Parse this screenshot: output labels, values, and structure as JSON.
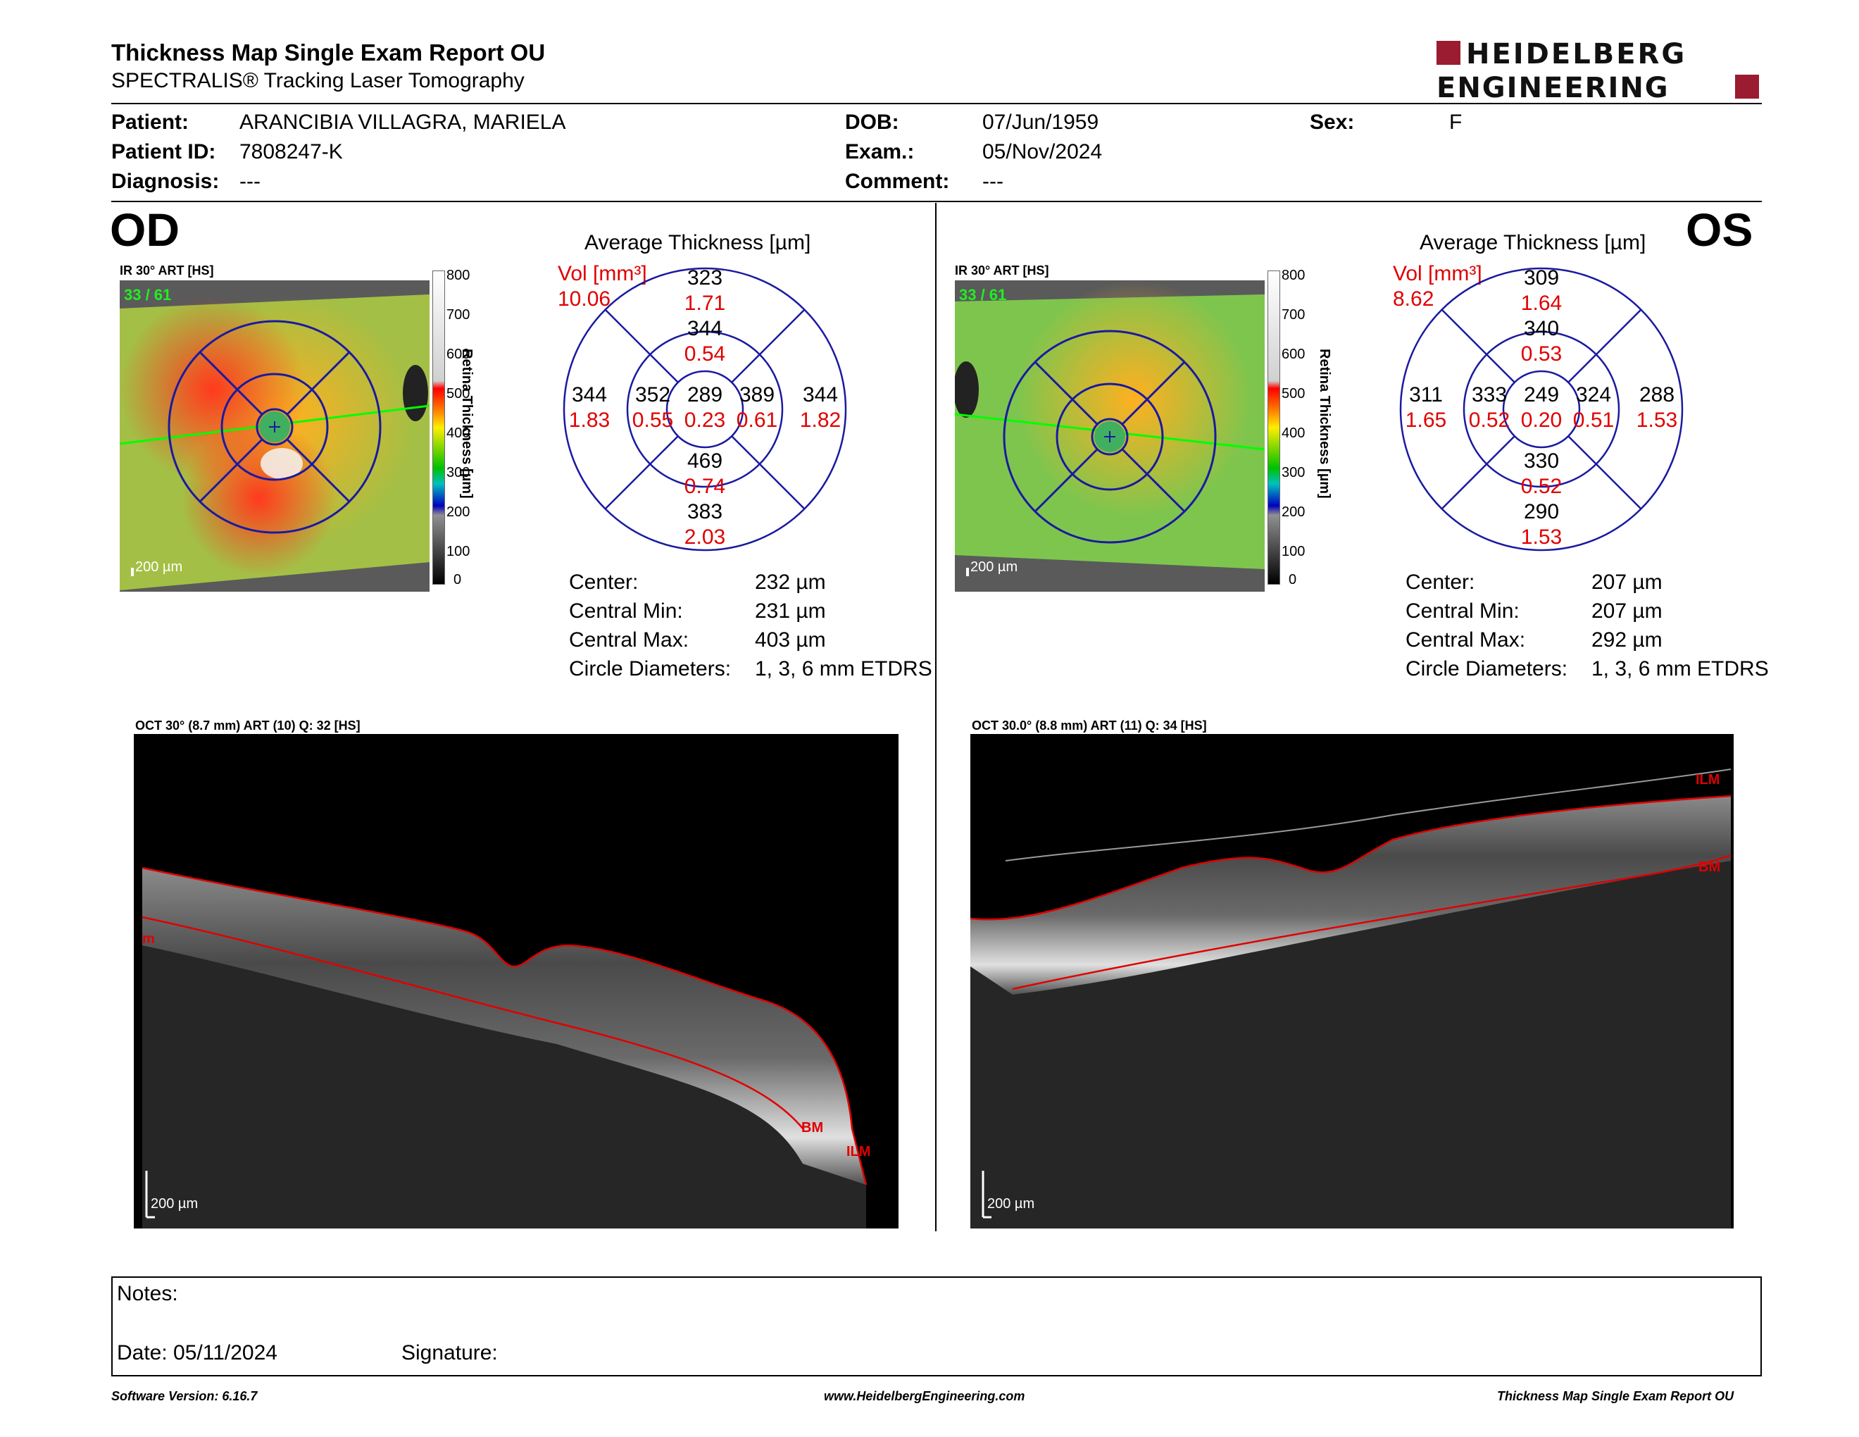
{
  "header": {
    "title": "Thickness Map Single Exam Report OU",
    "subtitle": "SPECTRALIS® Tracking Laser Tomography",
    "logo_line1": "HEIDELBERG",
    "logo_line2": "ENGINEERING"
  },
  "patient": {
    "patient_label": "Patient:",
    "patient_value": "ARANCIBIA VILLAGRA, MARIELA",
    "id_label": "Patient ID:",
    "id_value": "7808247-K",
    "diagnosis_label": "Diagnosis:",
    "diagnosis_value": "---",
    "dob_label": "DOB:",
    "dob_value": "07/Jun/1959",
    "exam_label": "Exam.:",
    "exam_value": "05/Nov/2024",
    "comment_label": "Comment:",
    "comment_value": "---",
    "sex_label": "Sex:",
    "sex_value": "F"
  },
  "od": {
    "eye": "OD",
    "ir_label": "IR 30° ART [HS]",
    "ir_counter": "33 / 61",
    "scale_label": "200 µm",
    "colorbar_ticks": [
      "800",
      "700",
      "600",
      "500",
      "400",
      "300",
      "200",
      "100",
      "0"
    ],
    "colorbar_title": "Retina Thickness [µm]",
    "avg_title": "Average Thickness [µm]",
    "vol_label": "Vol [mm³]",
    "vol_value": "10.06",
    "sectors": {
      "center": {
        "t": "289",
        "v": "0.23"
      },
      "inner_sup": {
        "t": "344",
        "v": "0.54"
      },
      "inner_inf": {
        "t": "469",
        "v": "0.74"
      },
      "inner_left": {
        "t": "352",
        "v": "0.55"
      },
      "inner_right": {
        "t": "389",
        "v": "0.61"
      },
      "outer_sup": {
        "t": "323",
        "v": "1.71"
      },
      "outer_inf": {
        "t": "383",
        "v": "2.03"
      },
      "outer_left": {
        "t": "344",
        "v": "1.83"
      },
      "outer_right": {
        "t": "344",
        "v": "1.82"
      }
    },
    "stats": {
      "center_label": "Center:",
      "center_value": "232 µm",
      "cmin_label": "Central Min:",
      "cmin_value": "231 µm",
      "cmax_label": "Central Max:",
      "cmax_value": "403 µm",
      "diam_label": "Circle Diameters:",
      "diam_value": "1, 3, 6 mm ETDRS"
    },
    "oct_label": "OCT 30° (8.7 mm) ART (10) Q: 32 [HS]",
    "oct_scale": "200 µm",
    "oct_ilm": "ILM",
    "oct_bm": "BM",
    "oct_m": "m"
  },
  "os": {
    "eye": "OS",
    "ir_label": "IR 30° ART [HS]",
    "ir_counter": "33 / 61",
    "scale_label": "200 µm",
    "colorbar_ticks": [
      "800",
      "700",
      "600",
      "500",
      "400",
      "300",
      "200",
      "100",
      "0"
    ],
    "colorbar_title": "Retina Thickness [µm]",
    "avg_title": "Average Thickness [µm]",
    "vol_label": "Vol [mm³]",
    "vol_value": "8.62",
    "sectors": {
      "center": {
        "t": "249",
        "v": "0.20"
      },
      "inner_sup": {
        "t": "340",
        "v": "0.53"
      },
      "inner_inf": {
        "t": "330",
        "v": "0.52"
      },
      "inner_left": {
        "t": "333",
        "v": "0.52"
      },
      "inner_right": {
        "t": "324",
        "v": "0.51"
      },
      "outer_sup": {
        "t": "309",
        "v": "1.64"
      },
      "outer_inf": {
        "t": "290",
        "v": "1.53"
      },
      "outer_left": {
        "t": "311",
        "v": "1.65"
      },
      "outer_right": {
        "t": "288",
        "v": "1.53"
      }
    },
    "stats": {
      "center_label": "Center:",
      "center_value": "207 µm",
      "cmin_label": "Central Min:",
      "cmin_value": "207 µm",
      "cmax_label": "Central Max:",
      "cmax_value": "292 µm",
      "diam_label": "Circle Diameters:",
      "diam_value": "1, 3, 6 mm ETDRS"
    },
    "oct_label": "OCT 30.0° (8.8 mm) ART (11) Q: 34 [HS]",
    "oct_scale": "200 µm",
    "oct_ilm": "ILM",
    "oct_bm": "BM"
  },
  "notes": {
    "notes_label": "Notes:",
    "date_label": "Date: 05/11/2024",
    "signature_label": "Signature:"
  },
  "footer": {
    "software": "Software Version: 6.16.7",
    "website": "www.HeidelbergEngineering.com",
    "report": "Thickness Map Single Exam Report OU"
  },
  "colors": {
    "accent_red": "#9b1b30",
    "ring_blue": "#1a1aa0",
    "value_red": "#e00000",
    "green_line": "#00e000"
  }
}
